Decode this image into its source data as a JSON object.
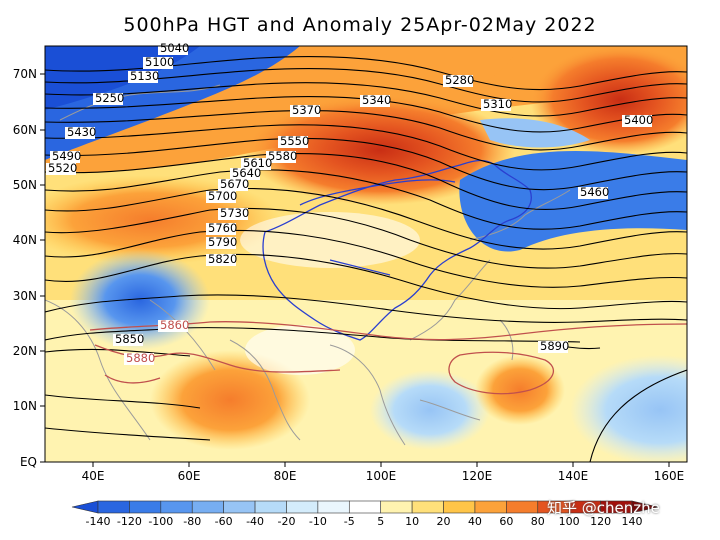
{
  "title": "500hPa HGT and Anomaly 25Apr-02May 2022",
  "axes": {
    "lon_labels": [
      "40E",
      "60E",
      "80E",
      "100E",
      "120E",
      "140E",
      "160E"
    ],
    "lat_labels": [
      "70N",
      "60N",
      "50N",
      "40N",
      "30N",
      "20N",
      "10N",
      "EQ"
    ]
  },
  "contours": [
    {
      "label": "5040",
      "color": "#000000"
    },
    {
      "label": "5100",
      "color": "#000000"
    },
    {
      "label": "5130",
      "color": "#000000"
    },
    {
      "label": "5250",
      "color": "#000000"
    },
    {
      "label": "5280",
      "color": "#000000"
    },
    {
      "label": "5310",
      "color": "#000000"
    },
    {
      "label": "5340",
      "color": "#000000"
    },
    {
      "label": "5370",
      "color": "#000000"
    },
    {
      "label": "5400",
      "color": "#000000"
    },
    {
      "label": "5430",
      "color": "#000000"
    },
    {
      "label": "5460",
      "color": "#000000"
    },
    {
      "label": "5490",
      "color": "#000000"
    },
    {
      "label": "5520",
      "color": "#000000"
    },
    {
      "label": "5550",
      "color": "#000000"
    },
    {
      "label": "5580",
      "color": "#000000"
    },
    {
      "label": "5610",
      "color": "#000000"
    },
    {
      "label": "5640",
      "color": "#000000"
    },
    {
      "label": "5670",
      "color": "#000000"
    },
    {
      "label": "5700",
      "color": "#000000"
    },
    {
      "label": "5730",
      "color": "#000000"
    },
    {
      "label": "5760",
      "color": "#000000"
    },
    {
      "label": "5790",
      "color": "#000000"
    },
    {
      "label": "5820",
      "color": "#000000"
    },
    {
      "label": "5850",
      "color": "#000000"
    },
    {
      "label": "5860",
      "color": "#c0504d"
    },
    {
      "label": "5880",
      "color": "#c0504d"
    },
    {
      "label": "5890",
      "color": "#000000"
    }
  ],
  "colorbar": {
    "labels": [
      "-140",
      "-120",
      "-100",
      "-80",
      "-60",
      "-40",
      "-20",
      "-10",
      "-5",
      "5",
      "10",
      "20",
      "40",
      "60",
      "80",
      "100",
      "120",
      "140"
    ],
    "colors": [
      "#1a4fd6",
      "#2a66e0",
      "#3a7ce8",
      "#5896ee",
      "#77aef2",
      "#97c4f5",
      "#b6dbf8",
      "#d4ecfb",
      "#eaf6fd",
      "#ffffff",
      "#fff3b0",
      "#ffe07a",
      "#ffc548",
      "#fca23a",
      "#f57d2c",
      "#e45420",
      "#c92e14",
      "#a50f0a",
      "#7a0505"
    ]
  },
  "watermark": "知乎 @chenzhe"
}
